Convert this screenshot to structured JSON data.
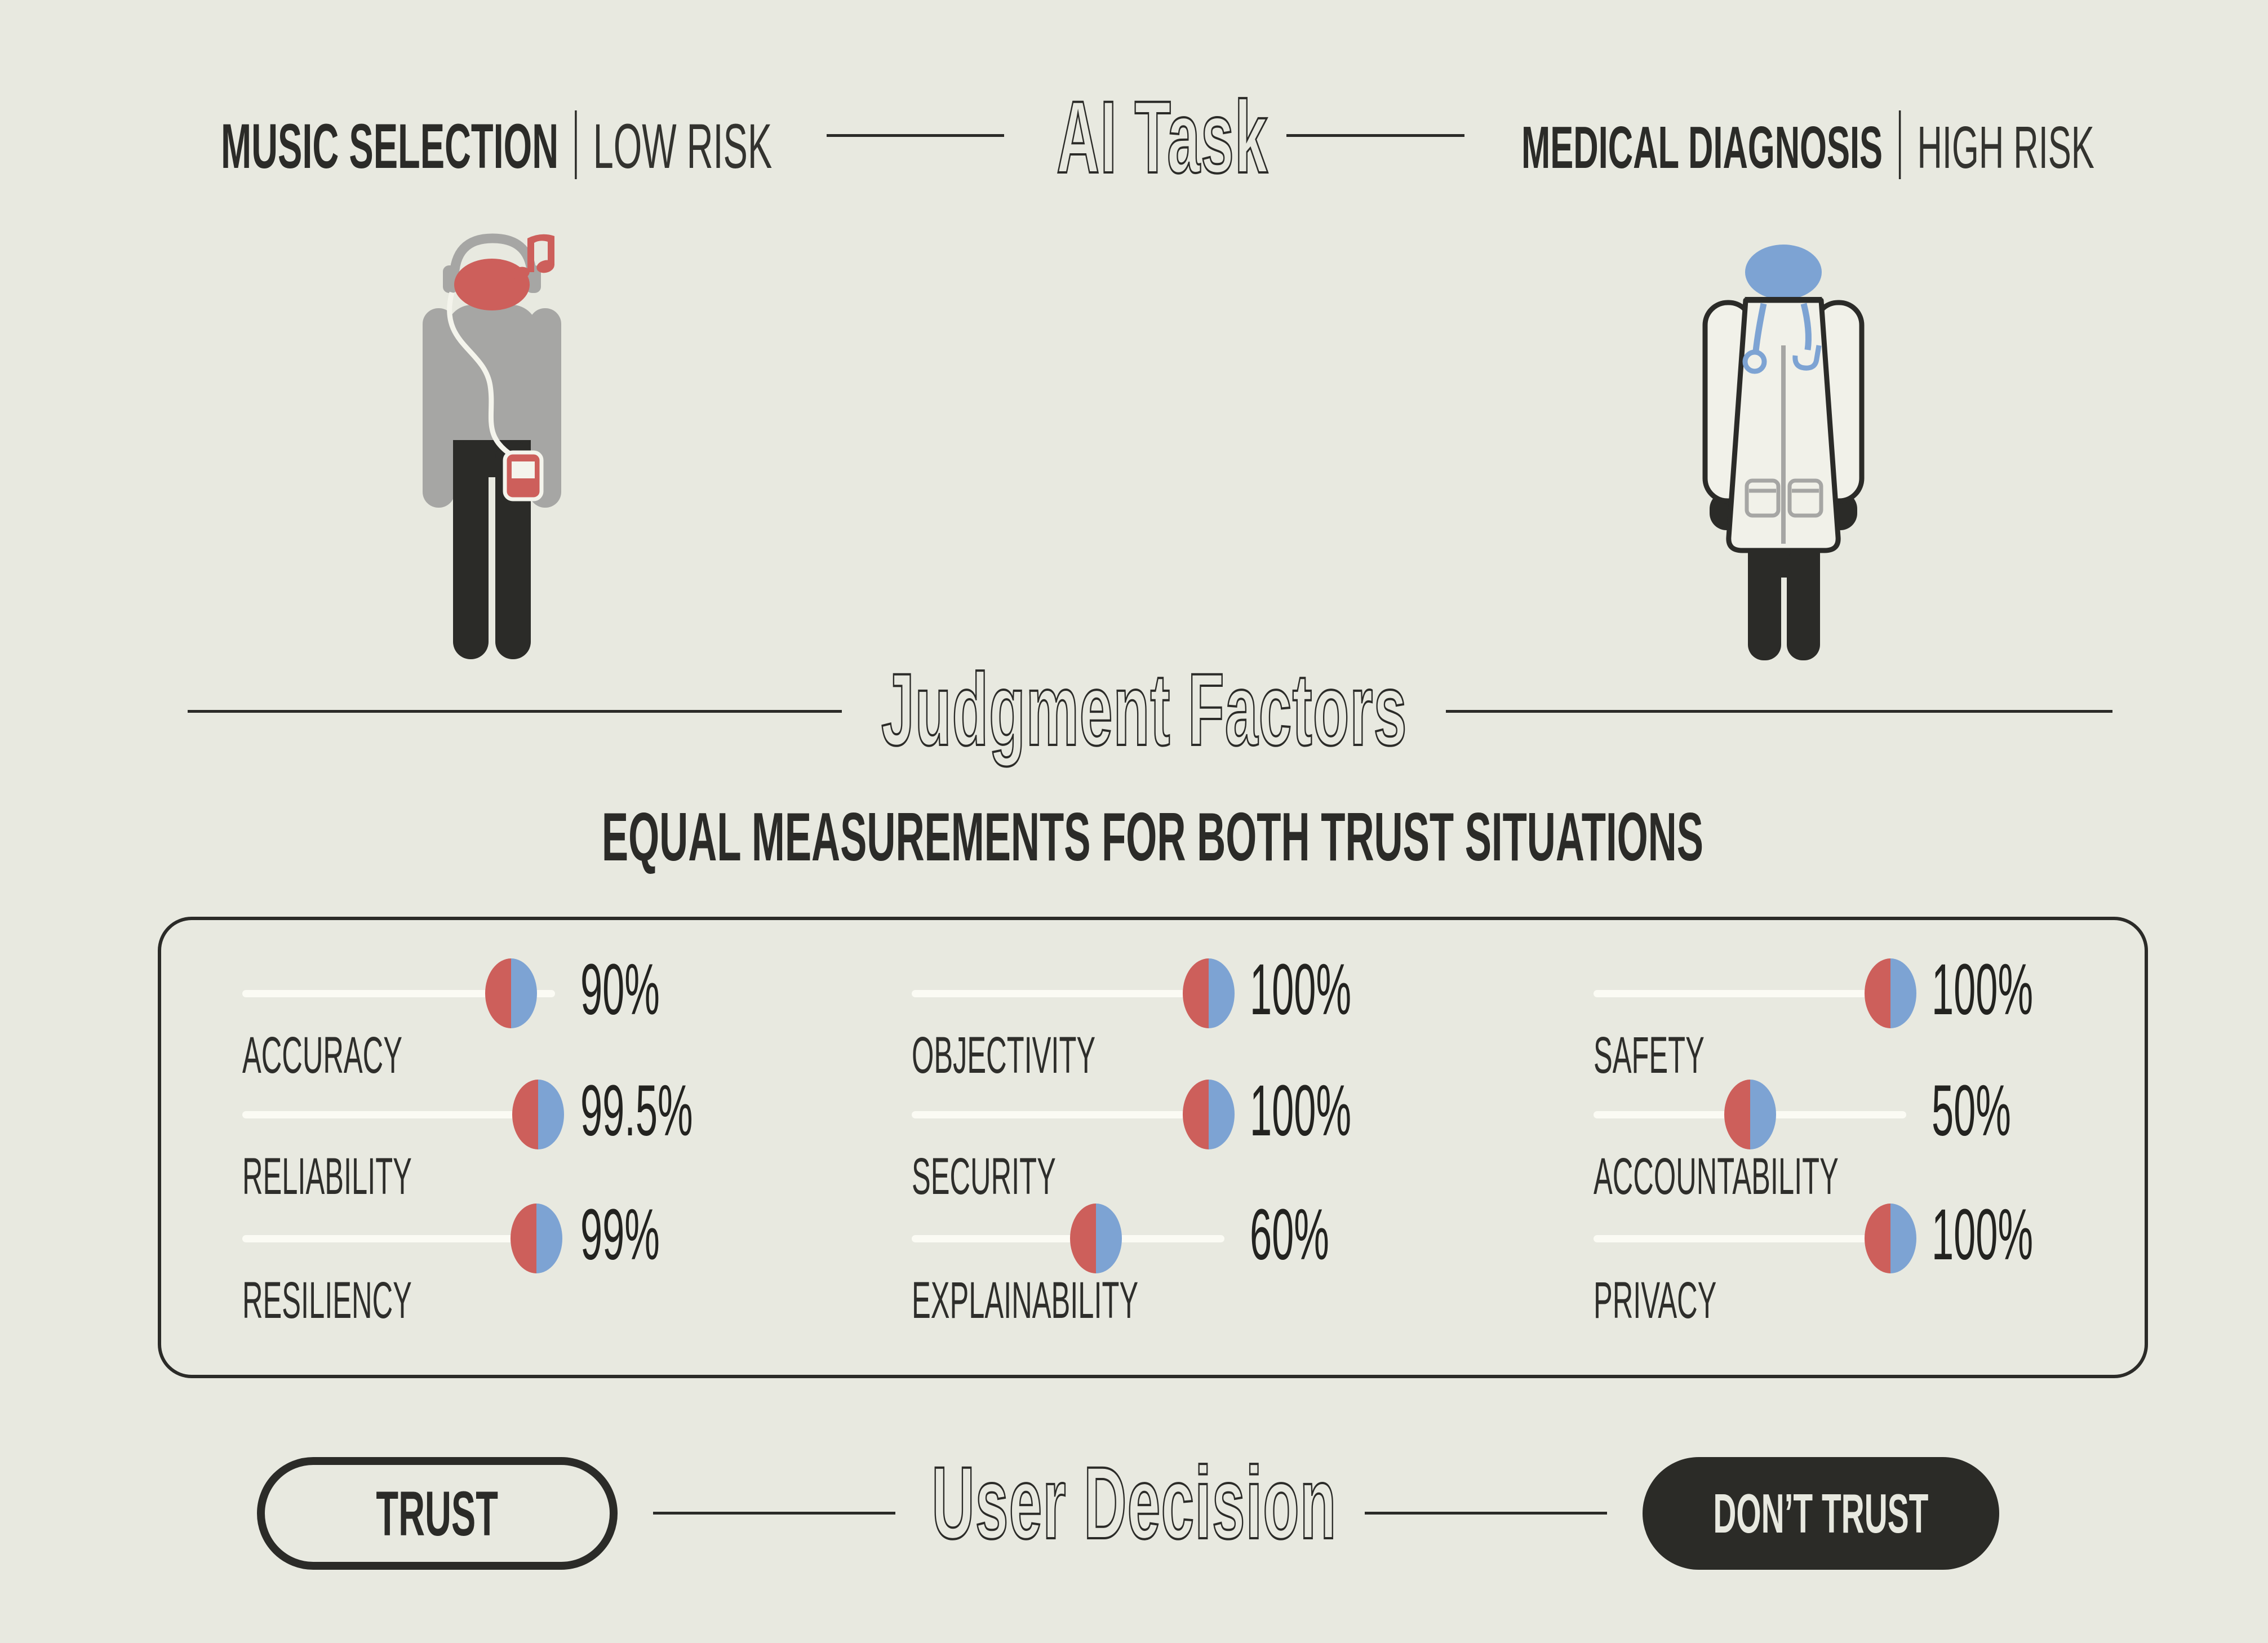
{
  "palette": {
    "background": "#e8e9e0",
    "ink": "#2b2b28",
    "red": "#cd5f5b",
    "blue": "#7da3d3",
    "gray": "#a6a6a4",
    "coat_white": "#f1f1e9",
    "track_white": "#fbfbf4"
  },
  "header": {
    "center_title": "AI Task",
    "left": {
      "task": "MUSIC SELECTION",
      "risk": "LOW RISK"
    },
    "right": {
      "task": "MEDICAL DIAGNOSIS",
      "risk": "HIGH RISK"
    }
  },
  "figures": {
    "left_icon": "music-listener-icon",
    "right_icon": "doctor-icon"
  },
  "judgment": {
    "title": "Judgment Factors",
    "subtitle": "EQUAL MEASUREMENTS FOR BOTH TRUST SITUATIONS",
    "factors": [
      {
        "label": "ACCURACY",
        "value": "90%",
        "percent": 90
      },
      {
        "label": "RELIABILITY",
        "value": "99.5%",
        "percent": 99.5
      },
      {
        "label": "RESILIENCY",
        "value": "99%",
        "percent": 99
      },
      {
        "label": "OBJECTIVITY",
        "value": "100%",
        "percent": 100
      },
      {
        "label": "SECURITY",
        "value": "100%",
        "percent": 100
      },
      {
        "label": "EXPLAINABILITY",
        "value": "60%",
        "percent": 60
      },
      {
        "label": "SAFETY",
        "value": "100%",
        "percent": 100
      },
      {
        "label": "ACCOUNTABILITY",
        "value": "50%",
        "percent": 50
      },
      {
        "label": "PRIVACY",
        "value": "100%",
        "percent": 100
      }
    ]
  },
  "decision": {
    "title": "User Decision",
    "trust_label": "TRUST",
    "dont_trust_label": "DON’T TRUST"
  },
  "chart_data": {
    "type": "table",
    "title": "Judgment Factors — Equal measurements for both trust situations",
    "categories": [
      "ACCURACY",
      "RELIABILITY",
      "RESILIENCY",
      "OBJECTIVITY",
      "SECURITY",
      "EXPLAINABILITY",
      "SAFETY",
      "ACCOUNTABILITY",
      "PRIVACY"
    ],
    "values": [
      90,
      99.5,
      99,
      100,
      100,
      60,
      100,
      50,
      100
    ],
    "ylabel": "percent",
    "ylim": [
      0,
      100
    ]
  }
}
